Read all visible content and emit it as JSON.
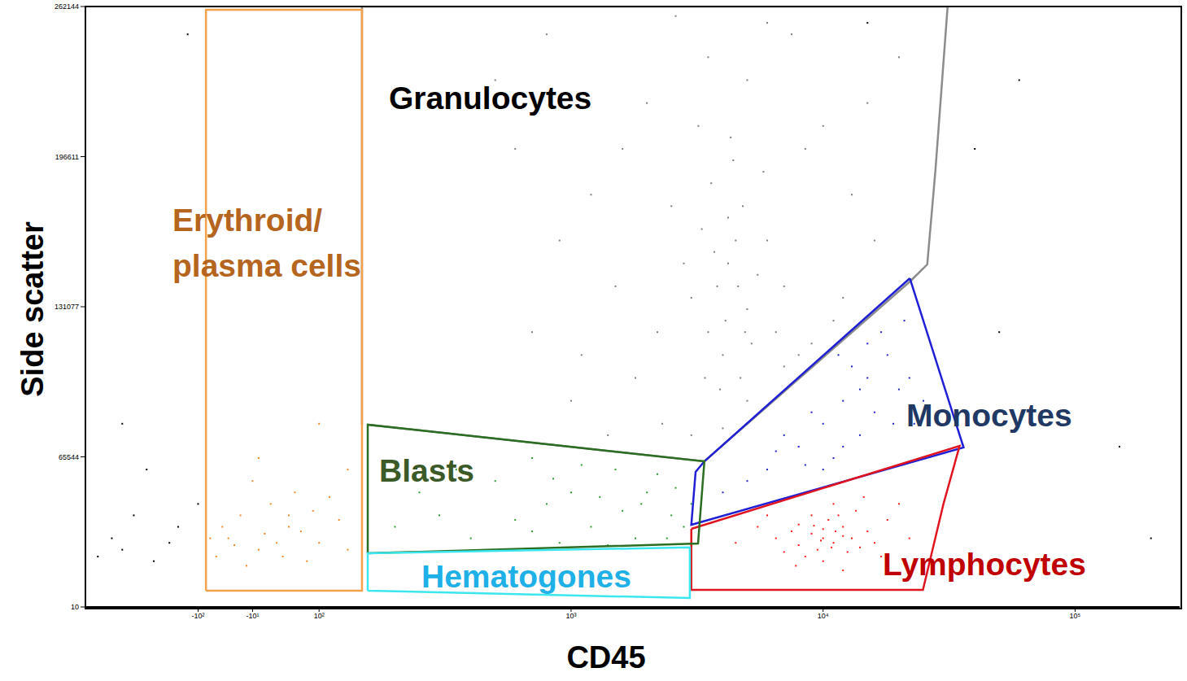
{
  "chart_data": {
    "type": "scatter",
    "x_label": "CD45",
    "y_label": "Side scatter",
    "xlim": [
      -280,
      260000
    ],
    "xticks": [
      {
        "value": -100,
        "label": "-10²"
      },
      {
        "value": -10,
        "label": "-10¹"
      },
      {
        "value": 100,
        "label": "10²"
      },
      {
        "value": 1000,
        "label": "10³"
      },
      {
        "value": 10000,
        "label": "10⁴"
      },
      {
        "value": 100000,
        "label": "10⁵"
      }
    ],
    "ylim": [
      10,
      262144
    ],
    "yticks": [
      10,
      65544,
      131077,
      196611,
      262144
    ],
    "series": [
      {
        "name": "Granulocytes",
        "name_color": "#000000",
        "color": "#7f7f7f",
        "gate": {
          "color": "#8c8c8c",
          "vertices": [
            [
              148,
              79570
            ],
            [
              148,
              262144
            ],
            [
              31200,
              262144
            ],
            [
              27900,
              190390
            ],
            [
              25900,
              149540
            ],
            [
              22300,
              142440
            ],
            [
              3380,
              63580
            ],
            [
              156,
              79570
            ]
          ]
        },
        "points": [
          [
            4200,
            150000
          ],
          [
            3800,
            140000
          ],
          [
            4500,
            160000
          ],
          [
            5000,
            130000
          ],
          [
            3500,
            120000
          ],
          [
            4000,
            110000
          ],
          [
            4800,
            175000
          ],
          [
            3300,
            165000
          ],
          [
            5500,
            145000
          ],
          [
            4100,
            125000
          ],
          [
            3600,
            185000
          ],
          [
            4700,
            100000
          ],
          [
            3900,
            95000
          ],
          [
            5200,
            115000
          ],
          [
            4400,
            195000
          ],
          [
            3000,
            135000
          ],
          [
            6000,
            160000
          ],
          [
            2800,
            150000
          ],
          [
            6500,
            120000
          ],
          [
            4300,
            205000
          ],
          [
            3200,
            210000
          ],
          [
            5800,
            190000
          ],
          [
            2500,
            175000
          ],
          [
            7000,
            140000
          ],
          [
            2200,
            120000
          ],
          [
            8000,
            110000
          ],
          [
            9000,
            115000
          ],
          [
            11000,
            125000
          ],
          [
            1800,
            100000
          ],
          [
            1500,
            140000
          ],
          [
            1200,
            180000
          ],
          [
            900,
            160000
          ],
          [
            700,
            120000
          ],
          [
            2000,
            220000
          ],
          [
            3500,
            240000
          ],
          [
            5000,
            230000
          ],
          [
            7500,
            250000
          ],
          [
            10000,
            210000
          ],
          [
            13000,
            180000
          ],
          [
            16000,
            160000
          ],
          [
            1000,
            90000
          ],
          [
            1400,
            75000
          ],
          [
            2300,
            80000
          ],
          [
            3000,
            75000
          ],
          [
            5000,
            90000
          ],
          [
            7000,
            105000
          ],
          [
            12000,
            135000
          ],
          [
            6000,
            255000
          ],
          [
            2600,
            258000
          ],
          [
            600,
            200000
          ],
          [
            500,
            230000
          ],
          [
            800,
            250000
          ],
          [
            20000,
            240000
          ],
          [
            15000,
            220000
          ],
          [
            1600,
            200000
          ],
          [
            4000,
            78000
          ],
          [
            1100,
            110000
          ],
          [
            8500,
            200000
          ],
          [
            3400,
            100000
          ],
          [
            4600,
            140000
          ],
          [
            4900,
            120000
          ],
          [
            3700,
            155000
          ],
          [
            4200,
            170000
          ]
        ]
      },
      {
        "name": "Monocytes",
        "name_color": "#1f3864",
        "color": "#2323c8",
        "gate": {
          "color": "#1f1fd6",
          "vertices": [
            [
              22100,
              143500
            ],
            [
              36100,
              69620
            ],
            [
              3000,
              35880
            ],
            [
              3120,
              58970
            ],
            [
              3380,
              63580
            ],
            [
              22100,
              143500
            ]
          ]
        },
        "points": [
          [
            10000,
            80000
          ],
          [
            12000,
            90000
          ],
          [
            15000,
            100000
          ],
          [
            8000,
            70000
          ],
          [
            6000,
            60000
          ],
          [
            14000,
            75000
          ],
          [
            18000,
            110000
          ],
          [
            20000,
            95000
          ],
          [
            11000,
            65000
          ],
          [
            9000,
            85000
          ],
          [
            16000,
            85000
          ],
          [
            7000,
            75000
          ],
          [
            5000,
            55000
          ],
          [
            13000,
            105000
          ],
          [
            17000,
            120000
          ],
          [
            22000,
            100000
          ],
          [
            25000,
            90000
          ],
          [
            19000,
            80000
          ],
          [
            10000,
            60000
          ],
          [
            4000,
            50000
          ],
          [
            12000,
            70000
          ],
          [
            15000,
            115000
          ],
          [
            21000,
            125000
          ],
          [
            8500,
            62000
          ],
          [
            6500,
            68000
          ],
          [
            23000,
            80000
          ],
          [
            14000,
            95000
          ],
          [
            11500,
            110000
          ]
        ]
      },
      {
        "name": "Lymphocytes",
        "name_color": "#c00000",
        "color": "#ff1a1a",
        "gate": {
          "color": "#e0141e",
          "vertices": [
            [
              3000,
              34110
            ],
            [
              34800,
              70330
            ],
            [
              30000,
              44760
            ],
            [
              24900,
              7470
            ],
            [
              3000,
              7470
            ],
            [
              3000,
              34110
            ]
          ]
        },
        "points": [
          [
            10000,
            30000
          ],
          [
            9000,
            32000
          ],
          [
            11000,
            28000
          ],
          [
            12000,
            35000
          ],
          [
            8000,
            27000
          ],
          [
            10500,
            38000
          ],
          [
            9500,
            25000
          ],
          [
            13000,
            30000
          ],
          [
            7500,
            33000
          ],
          [
            11500,
            40000
          ],
          [
            8500,
            22000
          ],
          [
            14000,
            26000
          ],
          [
            10000,
            20000
          ],
          [
            6500,
            30000
          ],
          [
            15000,
            33000
          ],
          [
            12500,
            24000
          ],
          [
            9000,
            40000
          ],
          [
            7000,
            24000
          ],
          [
            16000,
            28000
          ],
          [
            11000,
            45000
          ],
          [
            5500,
            35000
          ],
          [
            18000,
            38000
          ],
          [
            13500,
            42000
          ],
          [
            8000,
            36000
          ],
          [
            10000,
            34000
          ],
          [
            12000,
            31000
          ],
          [
            9800,
            29000
          ],
          [
            11200,
            33000
          ],
          [
            10800,
            26000
          ],
          [
            9200,
            35500
          ],
          [
            20000,
            45000
          ],
          [
            4500,
            28000
          ],
          [
            6000,
            40000
          ],
          [
            17000,
            22000
          ],
          [
            14500,
            48000
          ],
          [
            7800,
            18000
          ],
          [
            12000,
            16000
          ],
          [
            22000,
            30000
          ]
        ]
      },
      {
        "name": "Blasts",
        "name_color": "#3b5a28",
        "color": "#2e9a2e",
        "gate": {
          "color": "#2b6e22",
          "vertices": [
            [
              156,
              23440
            ],
            [
              156,
              79570
            ],
            [
              3380,
              63580
            ],
            [
              3190,
              27700
            ],
            [
              156,
              23440
            ]
          ]
        },
        "points": [
          [
            300,
            40000
          ],
          [
            500,
            55000
          ],
          [
            800,
            45000
          ],
          [
            1200,
            35000
          ],
          [
            1500,
            60000
          ],
          [
            2000,
            50000
          ],
          [
            2500,
            40000
          ],
          [
            400,
            30000
          ],
          [
            700,
            65000
          ],
          [
            1000,
            50000
          ],
          [
            1800,
            30000
          ],
          [
            2200,
            58000
          ],
          [
            600,
            38000
          ],
          [
            900,
            28000
          ],
          [
            1300,
            48000
          ],
          [
            1600,
            42000
          ],
          [
            2800,
            35000
          ],
          [
            350,
            60000
          ],
          [
            250,
            50000
          ],
          [
            1100,
            62000
          ],
          [
            2600,
            52000
          ],
          [
            1900,
            45000
          ],
          [
            700,
            33000
          ],
          [
            1400,
            27000
          ],
          [
            2400,
            30000
          ],
          [
            3000,
            45000
          ],
          [
            200,
            35000
          ],
          [
            850,
            56000
          ]
        ]
      },
      {
        "name": "Hematogones",
        "name_color": "#20b0e8",
        "color": "#3ce6ee",
        "gate": {
          "color": "#3ce6ee",
          "vertices": [
            [
              156,
              7100
            ],
            [
              156,
              23440
            ],
            [
              2960,
              26000
            ],
            [
              2960,
              3900
            ],
            [
              156,
              7100
            ]
          ]
        },
        "points": []
      },
      {
        "name": "Erythroid/\nplasma cells",
        "name_color": "#b5651d",
        "color": "#f0892a",
        "gate": {
          "color": "#f5a04a",
          "vertices": [
            [
              -87,
              7100
            ],
            [
              -87,
              260700
            ],
            [
              148,
              260700
            ],
            [
              148,
              7100
            ],
            [
              -87,
              7100
            ]
          ]
        },
        "points": [
          [
            -50,
            30000
          ],
          [
            0,
            25000
          ],
          [
            50,
            35000
          ],
          [
            100,
            28000
          ],
          [
            -30,
            40000
          ],
          [
            20,
            45000
          ],
          [
            80,
            20000
          ],
          [
            120,
            38000
          ],
          [
            -70,
            22000
          ],
          [
            10,
            32000
          ],
          [
            60,
            50000
          ],
          [
            -20,
            18000
          ],
          [
            90,
            42000
          ],
          [
            130,
            25000
          ],
          [
            -60,
            35000
          ],
          [
            30,
            28000
          ],
          [
            70,
            33000
          ],
          [
            -10,
            55000
          ],
          [
            110,
            48000
          ],
          [
            40,
            22000
          ],
          [
            -40,
            27000
          ],
          [
            0,
            65000
          ],
          [
            100,
            80000
          ],
          [
            -80,
            30000
          ],
          [
            130,
            60000
          ],
          [
            50,
            40000
          ]
        ]
      },
      {
        "color": "#000000",
        "points": [
          [
            -150,
            20000
          ],
          [
            -200,
            25000
          ],
          [
            -120,
            35000
          ],
          [
            -250,
            22000
          ],
          [
            -180,
            40000
          ],
          [
            -100,
            45000
          ],
          [
            -130,
            28000
          ],
          [
            -220,
            30000
          ],
          [
            -160,
            60000
          ],
          [
            -200,
            80000
          ],
          [
            15000,
            255000
          ],
          [
            60000,
            230000
          ],
          [
            40000,
            200000
          ],
          [
            50000,
            120000
          ],
          [
            200000,
            30000
          ],
          [
            150000,
            70000
          ],
          [
            -110,
            250000
          ]
        ]
      }
    ]
  }
}
